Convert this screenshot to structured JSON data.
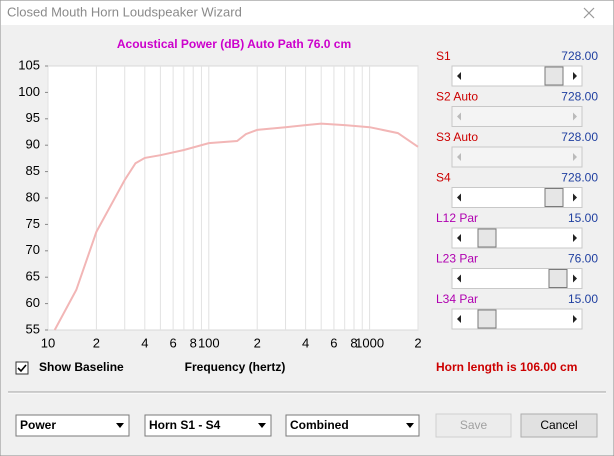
{
  "window": {
    "title": "Closed Mouth Horn Loudspeaker Wizard"
  },
  "chart_data": {
    "type": "line",
    "title": "Acoustical Power (dB)   Auto Path 76.0 cm",
    "x_label": "Frequency (hertz)",
    "x": [
      11,
      15,
      20,
      30,
      35,
      40,
      50,
      70,
      100,
      150,
      170,
      200,
      300,
      400,
      500,
      700,
      1000,
      1500,
      2000
    ],
    "values": [
      55,
      62.6,
      73.6,
      83.4,
      86.6,
      87.6,
      88.1,
      89.1,
      90.4,
      90.8,
      92.1,
      92.9,
      93.4,
      93.8,
      94.1,
      93.8,
      93.4,
      92.3,
      89.7
    ],
    "color": "#f2b6b6",
    "log_x": true,
    "grid": "x",
    "xlim": [
      10,
      2000
    ],
    "ylim": [
      55,
      105
    ],
    "xticks": [
      10,
      {
        "value": 20,
        "label": "2"
      },
      {
        "value": 30,
        "label": ""
      },
      {
        "value": 40,
        "label": "4"
      },
      {
        "value": 50,
        "label": ""
      },
      {
        "value": 60,
        "label": "6"
      },
      {
        "value": 70,
        "label": ""
      },
      {
        "value": 80,
        "label": "8"
      },
      {
        "value": 90,
        "label": ""
      },
      100,
      {
        "value": 200,
        "label": "2"
      },
      {
        "value": 300,
        "label": ""
      },
      {
        "value": 400,
        "label": "4"
      },
      {
        "value": 500,
        "label": ""
      },
      {
        "value": 600,
        "label": "6"
      },
      {
        "value": 700,
        "label": ""
      },
      {
        "value": 800,
        "label": "8"
      },
      {
        "value": 900,
        "label": ""
      },
      1000,
      {
        "value": 2000,
        "label": "2"
      }
    ],
    "yticks": [
      55,
      60,
      65,
      70,
      75,
      80,
      85,
      90,
      95,
      100,
      105
    ]
  },
  "sliders": [
    {
      "label": "S1",
      "value": "728.00"
    },
    {
      "label": "S2 Auto",
      "value": "728.00"
    },
    {
      "label": "S3 Auto",
      "value": "728.00"
    },
    {
      "label": "S4",
      "value": "728.00"
    },
    {
      "label": "L12 Par",
      "value": "15.00"
    },
    {
      "label": "L23 Par",
      "value": "76.00"
    },
    {
      "label": "L34 Par",
      "value": "15.00"
    }
  ],
  "checkbox": {
    "label": "Show Baseline"
  },
  "status": "Horn length is 106.00 cm",
  "dropdowns": [
    "Power",
    "Horn S1 - S4",
    "Combined"
  ],
  "buttons": [
    "Save",
    "Cancel"
  ]
}
